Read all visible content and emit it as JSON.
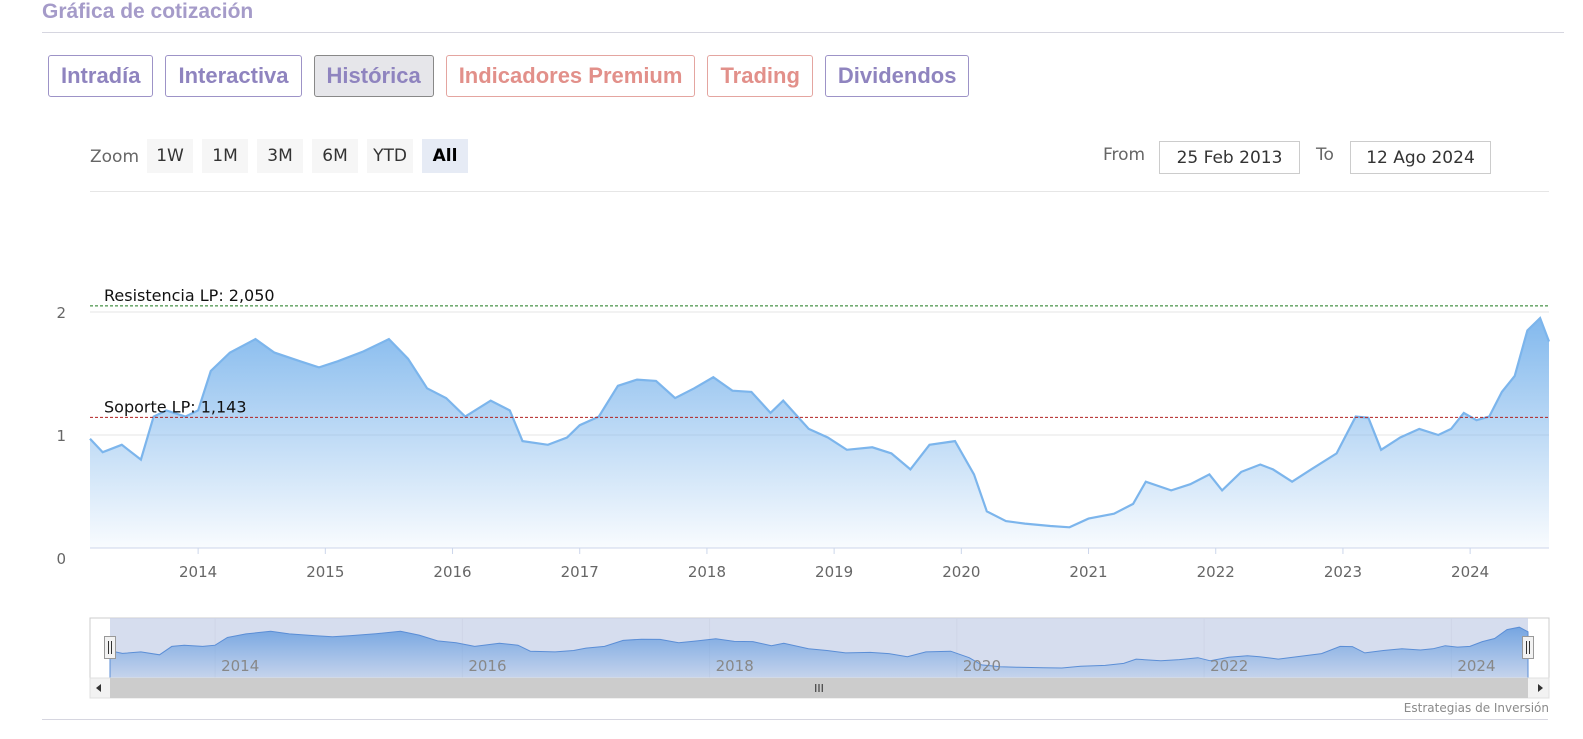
{
  "header": {
    "title": "Gráfica de cotización"
  },
  "tabs": [
    {
      "label": "Intradía",
      "state": "normal"
    },
    {
      "label": "Interactiva",
      "state": "normal"
    },
    {
      "label": "Histórica",
      "state": "active"
    },
    {
      "label": "Indicadores Premium",
      "state": "premium"
    },
    {
      "label": "Trading",
      "state": "premium"
    },
    {
      "label": "Dividendos",
      "state": "normal"
    }
  ],
  "toolbar": {
    "zoom_label": "Zoom",
    "zoom_buttons": [
      "1W",
      "1M",
      "3M",
      "6M",
      "YTD",
      "All"
    ],
    "zoom_selected": "All",
    "from_label": "From",
    "from_value": "25 Feb 2013",
    "to_label": "To",
    "to_value": "12 Ago 2024"
  },
  "chart_data": {
    "type": "area",
    "title": "",
    "xlabel": "",
    "ylabel": "",
    "x_range": [
      "2013-02-25",
      "2024-08-12"
    ],
    "ylim": [
      0,
      2
    ],
    "y_ticks": [
      0,
      1,
      2
    ],
    "x_ticks": [
      "2014",
      "2015",
      "2016",
      "2017",
      "2018",
      "2019",
      "2020",
      "2021",
      "2022",
      "2023",
      "2024"
    ],
    "navigator_ticks": [
      "2014",
      "2016",
      "2018",
      "2020",
      "2022",
      "2024"
    ],
    "grid": true,
    "legend": "none",
    "series": [
      {
        "color": "#7cb5ec",
        "x": [
          2013.15,
          2013.25,
          2013.4,
          2013.55,
          2013.65,
          2013.75,
          2013.9,
          2014.0,
          2014.1,
          2014.25,
          2014.45,
          2014.6,
          2014.8,
          2014.95,
          2015.1,
          2015.3,
          2015.5,
          2015.65,
          2015.8,
          2015.95,
          2016.1,
          2016.3,
          2016.45,
          2016.55,
          2016.75,
          2016.9,
          2017.0,
          2017.15,
          2017.3,
          2017.45,
          2017.6,
          2017.75,
          2017.9,
          2018.05,
          2018.2,
          2018.35,
          2018.5,
          2018.6,
          2018.8,
          2018.95,
          2019.1,
          2019.3,
          2019.45,
          2019.6,
          2019.75,
          2019.95,
          2020.1,
          2020.2,
          2020.35,
          2020.5,
          2020.7,
          2020.85,
          2021.0,
          2021.2,
          2021.35,
          2021.45,
          2021.65,
          2021.8,
          2021.95,
          2022.05,
          2022.2,
          2022.35,
          2022.45,
          2022.6,
          2022.75,
          2022.95,
          2023.1,
          2023.2,
          2023.3,
          2023.45,
          2023.6,
          2023.75,
          2023.85,
          2023.95,
          2024.05,
          2024.15,
          2024.25,
          2024.35,
          2024.45,
          2024.55,
          2024.62
        ],
        "y": [
          0.97,
          0.86,
          0.92,
          0.8,
          1.15,
          1.2,
          1.15,
          1.2,
          1.52,
          1.67,
          1.78,
          1.67,
          1.6,
          1.55,
          1.6,
          1.68,
          1.78,
          1.62,
          1.38,
          1.3,
          1.15,
          1.28,
          1.2,
          0.95,
          0.92,
          0.98,
          1.08,
          1.15,
          1.4,
          1.45,
          1.44,
          1.3,
          1.38,
          1.47,
          1.36,
          1.35,
          1.18,
          1.28,
          1.05,
          0.98,
          0.88,
          0.9,
          0.85,
          0.72,
          0.92,
          0.95,
          0.68,
          0.38,
          0.3,
          0.28,
          0.26,
          0.25,
          0.32,
          0.36,
          0.44,
          0.62,
          0.55,
          0.6,
          0.68,
          0.55,
          0.7,
          0.76,
          0.72,
          0.62,
          0.72,
          0.85,
          1.15,
          1.14,
          0.88,
          0.98,
          1.05,
          1.0,
          1.05,
          1.18,
          1.12,
          1.15,
          1.35,
          1.48,
          1.85,
          1.95,
          1.76
        ]
      }
    ],
    "annotations": [
      {
        "label": "Resistencia LP: 2,050",
        "y": 2.05,
        "color": "#1f7a1f",
        "style": "dashed"
      },
      {
        "label": "Soporte LP: 1,143",
        "y": 1.143,
        "color": "#b22222",
        "style": "dashed"
      }
    ]
  },
  "navigator": {
    "scroll_grip": "III"
  },
  "footer": {
    "credit": "Estrategias de Inversión"
  }
}
